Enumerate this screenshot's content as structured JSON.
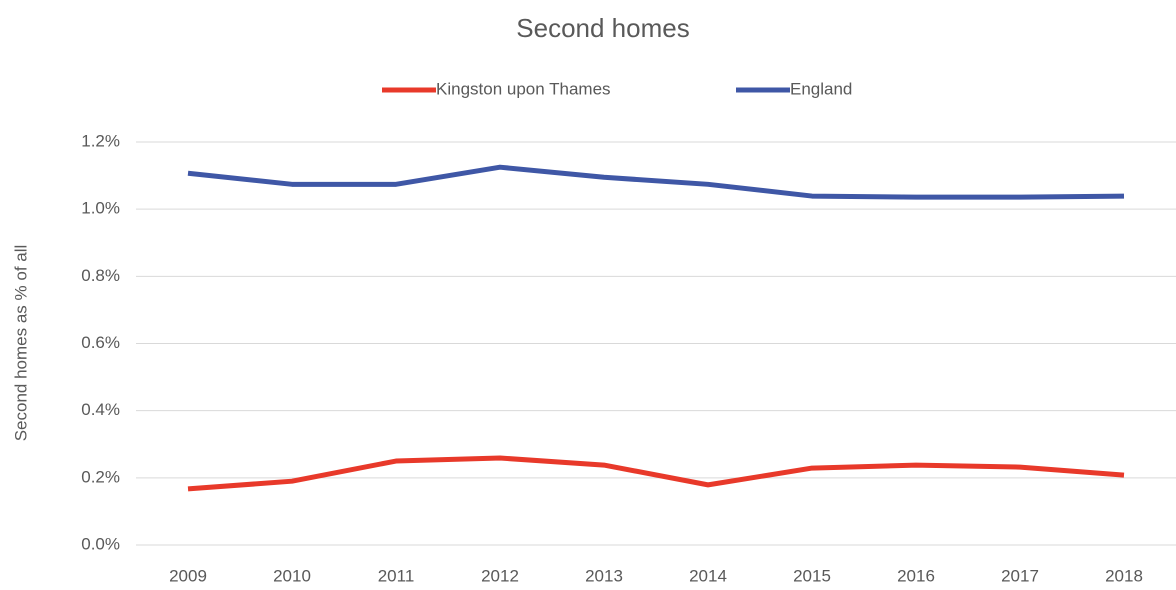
{
  "chart_data": {
    "type": "line",
    "title": "Second homes",
    "y_label": "Second homes as % of all",
    "categories": [
      "2009",
      "2010",
      "2011",
      "2012",
      "2013",
      "2014",
      "2015",
      "2016",
      "2017",
      "2018"
    ],
    "series": [
      {
        "name": "Kingston upon Thames",
        "color": "#e8392a",
        "values": [
          0.167,
          0.19,
          0.25,
          0.259,
          0.238,
          0.179,
          0.229,
          0.238,
          0.232,
          0.208
        ]
      },
      {
        "name": "England",
        "color": "#3f57a6",
        "values": [
          1.107,
          1.074,
          1.074,
          1.125,
          1.095,
          1.074,
          1.039,
          1.036,
          1.036,
          1.039
        ]
      }
    ],
    "ylim": [
      0,
      1.2
    ],
    "yticks": [
      {
        "value": 0,
        "label": "0.0%"
      },
      {
        "value": 0.2,
        "label": "0.2%"
      },
      {
        "value": 0.4,
        "label": "0.4%"
      },
      {
        "value": 0.6,
        "label": "0.6%"
      },
      {
        "value": 0.8,
        "label": "0.8%"
      },
      {
        "value": 1.0,
        "label": "1.0%"
      },
      {
        "value": 1.2,
        "label": "1.2%"
      }
    ],
    "grid": true,
    "legend": "top"
  }
}
